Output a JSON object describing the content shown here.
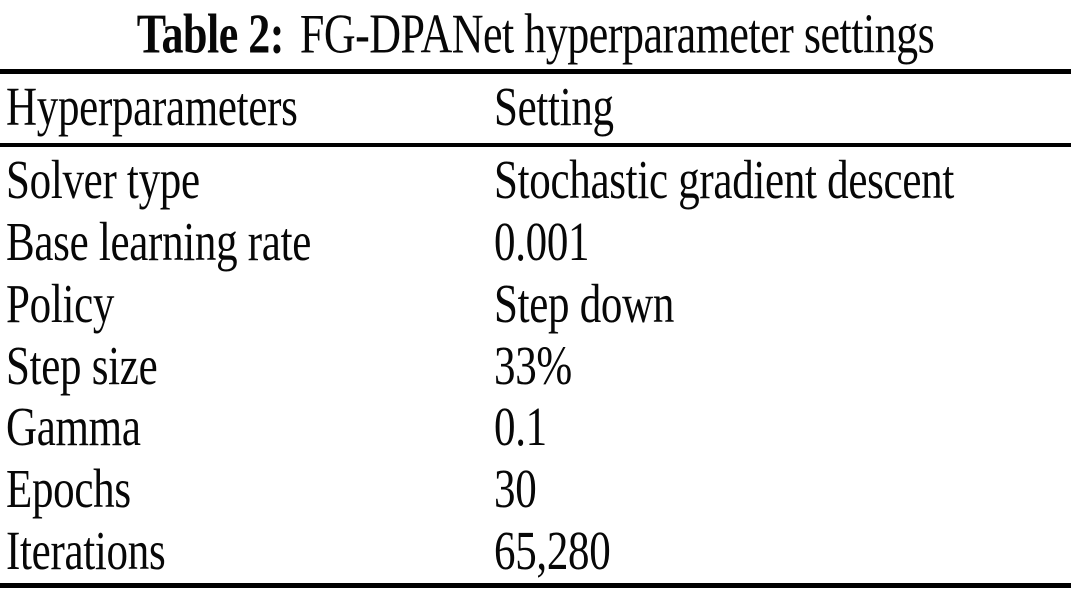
{
  "caption": {
    "label": "Table 2:",
    "text": "FG-DPANet hyperparameter settings"
  },
  "columns": [
    "Hyperparameters",
    "Setting"
  ],
  "rows": [
    {
      "param": "Solver type",
      "setting": "Stochastic gradient descent"
    },
    {
      "param": "Base learning rate",
      "setting": "0.001"
    },
    {
      "param": "Policy",
      "setting": "Step down"
    },
    {
      "param": "Step size",
      "setting": "33%"
    },
    {
      "param": "Gamma",
      "setting": "0.1"
    },
    {
      "param": "Epochs",
      "setting": "30"
    },
    {
      "param": "Iterations",
      "setting": "65,280"
    }
  ],
  "colors": {
    "text": "#070707",
    "rule": "#000000",
    "background": "#ffffff"
  }
}
